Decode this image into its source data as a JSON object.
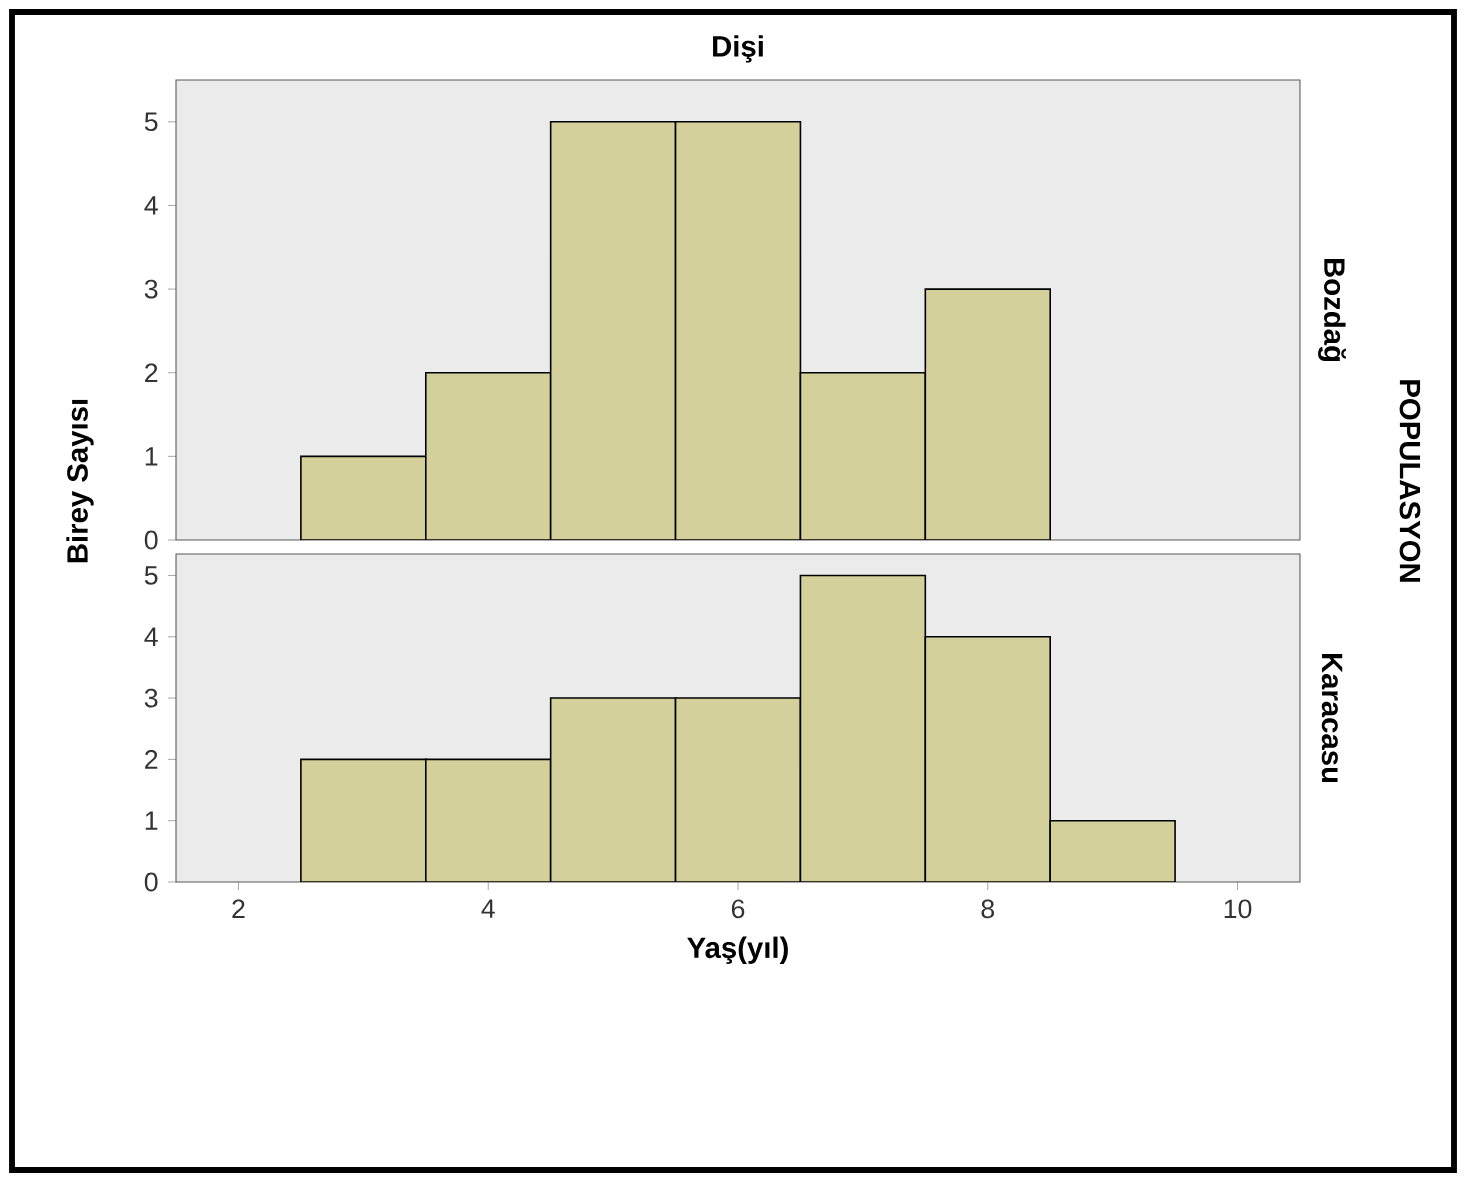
{
  "chart_data": [
    {
      "type": "histogram",
      "title": "Dişi",
      "ylabel": "Birey Sayısı",
      "y2label": "Bozdağ",
      "annotations": [
        "POPULASYON"
      ],
      "bins": [
        2.5,
        3.5,
        4.5,
        5.5,
        6.5,
        7.5,
        8.5
      ],
      "values": [
        1,
        2,
        5,
        5,
        2,
        3
      ],
      "color": "#d4d09b",
      "xlim": [
        1.5,
        10.5
      ],
      "ylim": [
        0,
        5.5
      ],
      "yticks": [
        0,
        1,
        2,
        3,
        4,
        5
      ],
      "tick_labels": "y",
      "grid": false
    },
    {
      "type": "histogram",
      "xlabel": "Yaş(yıl)",
      "y2label": "Karacasu",
      "bins": [
        2.5,
        3.5,
        4.5,
        5.5,
        6.5,
        7.5,
        8.5,
        9.5
      ],
      "values": [
        2,
        2,
        3,
        3,
        5,
        4,
        1
      ],
      "color": "#d4d09b",
      "xlim": [
        1.5,
        10.5
      ],
      "xticks": [
        2,
        4,
        6,
        8,
        10
      ],
      "ylim": [
        0,
        5.35
      ],
      "yticks": [
        0,
        1,
        2,
        3,
        4,
        5
      ],
      "grid": false
    }
  ]
}
